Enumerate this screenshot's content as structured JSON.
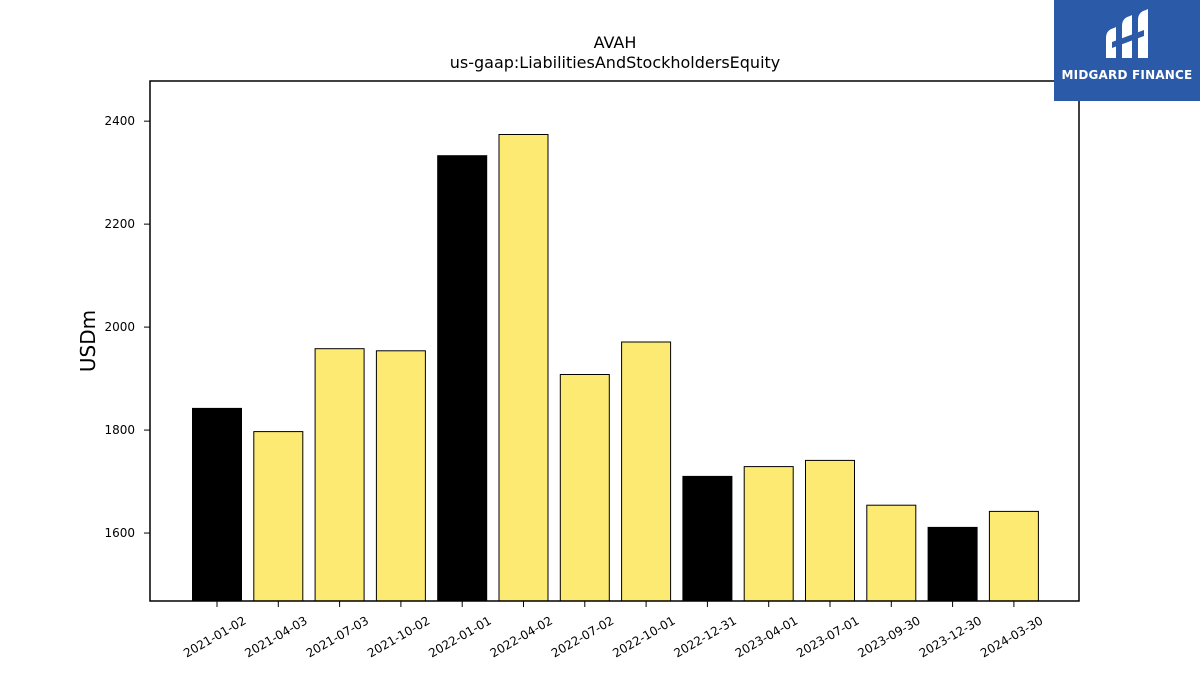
{
  "brand": {
    "name": "MIDGARD FINANCE",
    "background_color": "#2b5ba8",
    "icon": "midgard-logo-icon"
  },
  "chart_data": {
    "type": "bar",
    "title": "AVAH",
    "subtitle": "us-gaap:LiabilitiesAndStockholdersEquity",
    "xlabel": "",
    "ylabel": "USDm",
    "ylim": [
      1468,
      2478
    ],
    "yticks": [
      1600,
      1800,
      2000,
      2200,
      2400
    ],
    "grid": false,
    "categories": [
      "2021-01-02",
      "2021-04-03",
      "2021-07-03",
      "2021-10-02",
      "2022-01-01",
      "2022-04-02",
      "2022-07-02",
      "2022-10-01",
      "2022-12-31",
      "2023-04-01",
      "2023-07-01",
      "2023-09-30",
      "2023-12-30",
      "2024-03-30"
    ],
    "values": [
      1842,
      1797,
      1958,
      1954,
      2333,
      2374,
      1908,
      1971,
      1710,
      1729,
      1741,
      1654,
      1611,
      1642
    ],
    "bar_colors": [
      "#000000",
      "#fdea72",
      "#fdea72",
      "#fdea72",
      "#000000",
      "#fdea72",
      "#fdea72",
      "#fdea72",
      "#000000",
      "#fdea72",
      "#fdea72",
      "#fdea72",
      "#000000",
      "#fdea72"
    ],
    "colors": {
      "highlight": "#000000",
      "default": "#fdea72",
      "edge": "#000000"
    }
  }
}
